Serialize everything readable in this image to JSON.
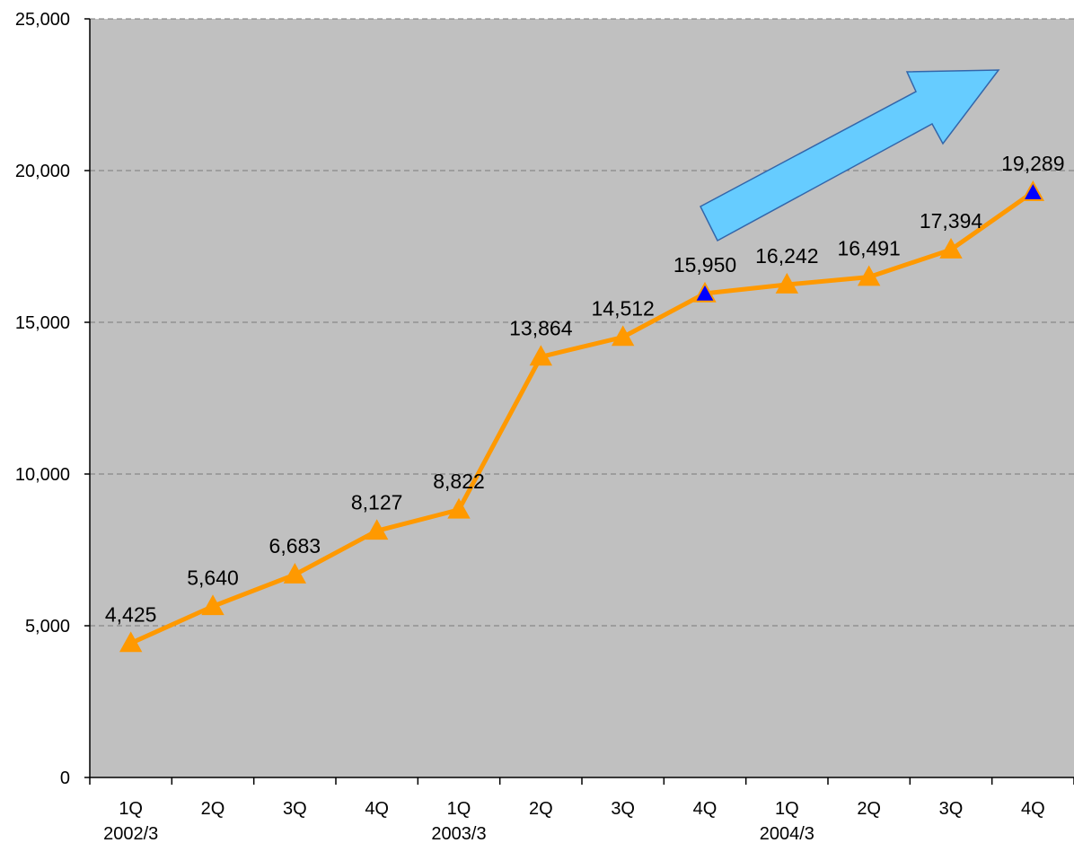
{
  "chart_data": {
    "type": "line",
    "categories": [
      "1Q",
      "2Q",
      "3Q",
      "4Q",
      "1Q",
      "2Q",
      "3Q",
      "4Q",
      "1Q",
      "2Q",
      "3Q",
      "4Q"
    ],
    "groups": [
      {
        "label": "2002/3",
        "index": 0
      },
      {
        "label": "2003/3",
        "index": 4
      },
      {
        "label": "2004/3",
        "index": 8
      }
    ],
    "values": [
      4425,
      5640,
      6683,
      8127,
      8822,
      13864,
      14512,
      15950,
      16242,
      16491,
      17394,
      19289
    ],
    "value_labels": [
      "4,425",
      "5,640",
      "6,683",
      "8,127",
      "8,822",
      "13,864",
      "14,512",
      "15,950",
      "16,242",
      "16,491",
      "17,394",
      "19,289"
    ],
    "highlighted_indices": [
      7,
      11
    ],
    "ylim": [
      0,
      25000
    ],
    "yticks": [
      0,
      5000,
      10000,
      15000,
      20000,
      25000
    ],
    "ytick_labels": [
      "0",
      "5,000",
      "10,000",
      "15,000",
      "20,000",
      "25,000"
    ],
    "grid": "horizontal-dashed",
    "legend": "none",
    "annotation": "upward trend arrow (top-right)",
    "colors": {
      "plot_background": "#c0c0c0",
      "line": "#ff9900",
      "marker": "#ff9900",
      "highlight_marker": "#0000ff",
      "arrow_fill": "#66ccff",
      "arrow_stroke": "#3366aa"
    }
  }
}
